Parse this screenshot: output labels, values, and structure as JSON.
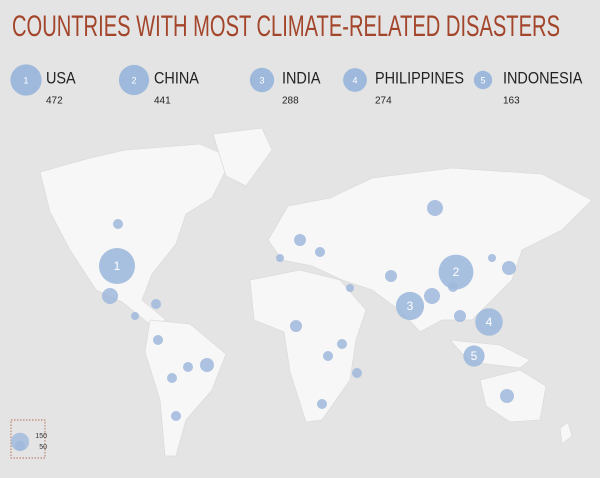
{
  "title": "COUNTRIES WITH MOST CLIMATE-RELATED DISASTERS",
  "top_countries": [
    {
      "rank": 1,
      "name": "USA",
      "value": 472
    },
    {
      "rank": 2,
      "name": "CHINA",
      "value": 441
    },
    {
      "rank": 3,
      "name": "INDIA",
      "value": 288
    },
    {
      "rank": 4,
      "name": "PHILIPPINES",
      "value": 274
    },
    {
      "rank": 5,
      "name": "INDONESIA",
      "value": 163
    }
  ],
  "legend": {
    "values": [
      150,
      50
    ]
  },
  "color": "#9fb9dc",
  "title_color": "#a3452a"
}
